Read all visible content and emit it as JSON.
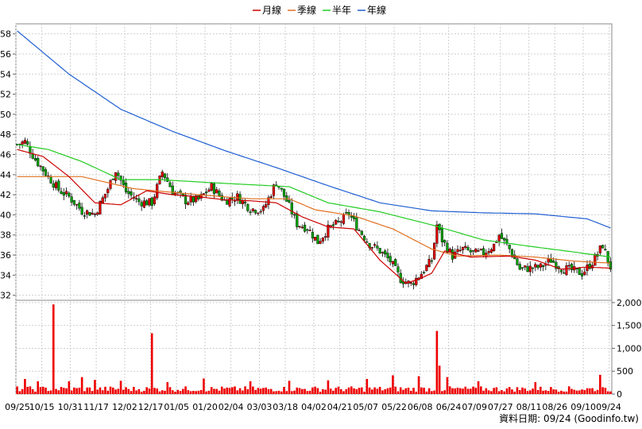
{
  "chart_data": {
    "type": "candlestick",
    "legend": [
      {
        "name": "月線",
        "color": "#cc0000"
      },
      {
        "name": "季線",
        "color": "#e07020"
      },
      {
        "name": "半年",
        "color": "#22cc22"
      },
      {
        "name": "年線",
        "color": "#1f5fd1"
      }
    ],
    "price_axis": {
      "ticks": [
        32,
        34,
        36,
        38,
        40,
        42,
        44,
        46,
        48,
        50,
        52,
        54,
        56,
        58
      ],
      "range": [
        31.5,
        59
      ]
    },
    "volume_axis": {
      "ticks": [
        0,
        500,
        1000,
        1500,
        2000
      ],
      "tick_labels": [
        "0",
        "500",
        "1,000",
        "1,500",
        "2,000"
      ],
      "range": [
        0,
        2050
      ]
    },
    "x_tick_labels": [
      "09/25",
      "10/15",
      "10/31",
      "11/17",
      "12/02",
      "12/17",
      "01/05",
      "01/20",
      "02/04",
      "03/03",
      "03/18",
      "04/02",
      "04/21",
      "05/07",
      "05/22",
      "06/08",
      "06/24",
      "07/09",
      "07/27",
      "08/11",
      "08/26",
      "09/10",
      "09/24"
    ],
    "price_waypoints": [
      [
        0,
        47.0
      ],
      [
        3,
        47.3
      ],
      [
        7,
        45.5
      ],
      [
        12,
        43.8
      ],
      [
        16,
        42.5
      ],
      [
        20,
        41.8
      ],
      [
        25,
        40.4
      ],
      [
        30,
        40.1
      ],
      [
        35,
        42.6
      ],
      [
        38,
        44.5
      ],
      [
        42,
        42.3
      ],
      [
        47,
        41.3
      ],
      [
        52,
        41.2
      ],
      [
        56,
        44.3
      ],
      [
        60,
        42.4
      ],
      [
        65,
        41.4
      ],
      [
        70,
        41.5
      ],
      [
        75,
        42.8
      ],
      [
        80,
        41.4
      ],
      [
        85,
        41.8
      ],
      [
        90,
        40.6
      ],
      [
        95,
        40.5
      ],
      [
        100,
        43.3
      ],
      [
        104,
        41.4
      ],
      [
        108,
        39.1
      ],
      [
        112,
        38.7
      ],
      [
        116,
        37.3
      ],
      [
        120,
        38.6
      ],
      [
        124,
        39.2
      ],
      [
        128,
        40.1
      ],
      [
        132,
        38.5
      ],
      [
        136,
        37.1
      ],
      [
        140,
        36.4
      ],
      [
        144,
        35.4
      ],
      [
        148,
        33.6
      ],
      [
        152,
        33.1
      ],
      [
        156,
        34.2
      ],
      [
        160,
        35.5
      ],
      [
        162,
        39.0
      ],
      [
        164,
        37.5
      ],
      [
        168,
        35.9
      ],
      [
        172,
        36.6
      ],
      [
        176,
        36.2
      ],
      [
        180,
        36.2
      ],
      [
        184,
        37.0
      ],
      [
        186,
        38.0
      ],
      [
        190,
        36.6
      ],
      [
        194,
        34.6
      ],
      [
        198,
        34.7
      ],
      [
        202,
        34.8
      ],
      [
        206,
        35.5
      ],
      [
        210,
        34.7
      ],
      [
        214,
        34.5
      ],
      [
        218,
        34.2
      ],
      [
        222,
        35.3
      ],
      [
        226,
        37.0
      ],
      [
        228,
        35.4
      ],
      [
        229,
        34.8
      ]
    ],
    "year_line_waypoints": [
      [
        0,
        58.3
      ],
      [
        20,
        54.0
      ],
      [
        40,
        50.5
      ],
      [
        60,
        48.3
      ],
      [
        80,
        46.4
      ],
      [
        100,
        44.7
      ],
      [
        120,
        42.9
      ],
      [
        140,
        41.2
      ],
      [
        160,
        40.4
      ],
      [
        180,
        40.2
      ],
      [
        200,
        40.1
      ],
      [
        220,
        39.6
      ],
      [
        229,
        38.7
      ]
    ],
    "halfyear_line_waypoints": [
      [
        0,
        47.0
      ],
      [
        12,
        46.5
      ],
      [
        25,
        45.3
      ],
      [
        40,
        43.5
      ],
      [
        55,
        43.5
      ],
      [
        75,
        43.2
      ],
      [
        90,
        43.0
      ],
      [
        105,
        42.8
      ],
      [
        120,
        41.2
      ],
      [
        140,
        40.3
      ],
      [
        160,
        39.0
      ],
      [
        180,
        37.5
      ],
      [
        200,
        36.8
      ],
      [
        215,
        36.3
      ],
      [
        229,
        35.8
      ]
    ],
    "quarter_line_waypoints": [
      [
        0,
        43.8
      ],
      [
        25,
        43.8
      ],
      [
        45,
        42.6
      ],
      [
        70,
        42.0
      ],
      [
        90,
        41.6
      ],
      [
        105,
        41.6
      ],
      [
        115,
        40.5
      ],
      [
        130,
        39.9
      ],
      [
        145,
        38.6
      ],
      [
        160,
        36.6
      ],
      [
        170,
        35.9
      ],
      [
        185,
        36.0
      ],
      [
        200,
        35.8
      ],
      [
        215,
        35.4
      ],
      [
        229,
        35.2
      ]
    ],
    "month_line_waypoints": [
      [
        0,
        46.5
      ],
      [
        10,
        45.8
      ],
      [
        20,
        43.8
      ],
      [
        30,
        41.2
      ],
      [
        40,
        41.0
      ],
      [
        50,
        42.4
      ],
      [
        60,
        42.0
      ],
      [
        70,
        41.8
      ],
      [
        80,
        41.5
      ],
      [
        90,
        41.4
      ],
      [
        100,
        41.2
      ],
      [
        110,
        39.8
      ],
      [
        120,
        38.8
      ],
      [
        130,
        38.6
      ],
      [
        140,
        35.5
      ],
      [
        150,
        33.2
      ],
      [
        155,
        33.6
      ],
      [
        160,
        34.2
      ],
      [
        165,
        36.4
      ],
      [
        175,
        35.8
      ],
      [
        190,
        35.9
      ],
      [
        200,
        35.5
      ],
      [
        210,
        34.6
      ],
      [
        220,
        34.8
      ],
      [
        229,
        34.7
      ]
    ],
    "volume_base": 50,
    "volume_spikes": [
      [
        3,
        330
      ],
      [
        8,
        280
      ],
      [
        14,
        1960
      ],
      [
        20,
        280
      ],
      [
        25,
        370
      ],
      [
        30,
        310
      ],
      [
        40,
        290
      ],
      [
        52,
        1330
      ],
      [
        58,
        260
      ],
      [
        72,
        340
      ],
      [
        90,
        280
      ],
      [
        105,
        290
      ],
      [
        120,
        300
      ],
      [
        135,
        330
      ],
      [
        145,
        410
      ],
      [
        155,
        390
      ],
      [
        162,
        1380
      ],
      [
        163,
        620
      ],
      [
        166,
        370
      ],
      [
        178,
        280
      ],
      [
        200,
        260
      ],
      [
        225,
        420
      ],
      [
        226,
        150
      ]
    ]
  },
  "source_text": "資料日期: 09/24  (Goodinfo.tw)"
}
